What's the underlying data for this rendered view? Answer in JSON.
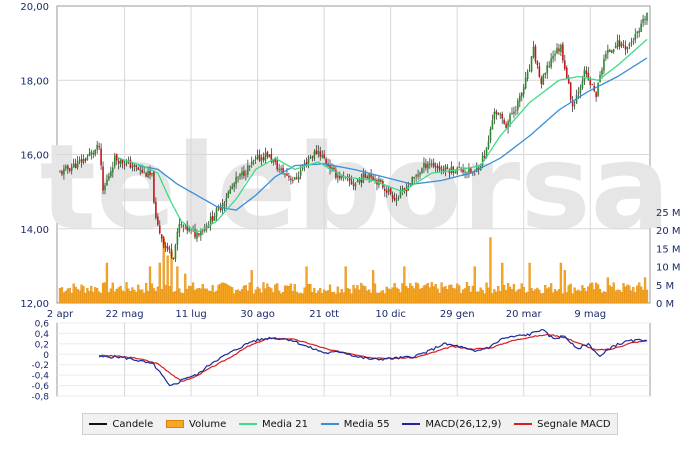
{
  "chart_data": [
    {
      "type": "candlestick",
      "panel": "price",
      "watermark": "teleborsa",
      "y_axis_left": {
        "ylim": [
          12,
          20
        ],
        "ticks": [
          "12,00",
          "14,00",
          "16,00",
          "18,00",
          "20,00"
        ]
      },
      "y_axis_volume": {
        "ylim_millions": [
          0,
          25
        ],
        "ticks": [
          "0 M",
          "5 M",
          "10 M",
          "15 M",
          "20 M",
          "25 M"
        ]
      },
      "x_tick_labels": [
        "2 apr",
        "22 mag",
        "11 lug",
        "30 ago",
        "21 ott",
        "10 dic",
        "29 gen",
        "20 mar",
        "9 mag"
      ],
      "x_range_index": [
        0,
        300
      ],
      "x_tick_index": [
        0,
        33,
        67,
        101,
        135,
        169,
        203,
        237,
        271
      ],
      "close_anchors": [
        {
          "i": 0,
          "y": 15.5
        },
        {
          "i": 12,
          "y": 15.85
        },
        {
          "i": 20,
          "y": 16.2
        },
        {
          "i": 22,
          "y": 15.0
        },
        {
          "i": 28,
          "y": 15.9
        },
        {
          "i": 35,
          "y": 15.75
        },
        {
          "i": 43,
          "y": 15.5
        },
        {
          "i": 47,
          "y": 15.4
        },
        {
          "i": 49,
          "y": 14.2
        },
        {
          "i": 54,
          "y": 13.5
        },
        {
          "i": 58,
          "y": 13.3
        },
        {
          "i": 61,
          "y": 14.1
        },
        {
          "i": 65,
          "y": 14.0
        },
        {
          "i": 69,
          "y": 13.85
        },
        {
          "i": 75,
          "y": 14.1
        },
        {
          "i": 82,
          "y": 14.6
        },
        {
          "i": 90,
          "y": 15.3
        },
        {
          "i": 100,
          "y": 15.85
        },
        {
          "i": 106,
          "y": 16.0
        },
        {
          "i": 112,
          "y": 15.6
        },
        {
          "i": 120,
          "y": 15.3
        },
        {
          "i": 127,
          "y": 15.9
        },
        {
          "i": 132,
          "y": 16.1
        },
        {
          "i": 140,
          "y": 15.5
        },
        {
          "i": 150,
          "y": 15.2
        },
        {
          "i": 158,
          "y": 15.5
        },
        {
          "i": 166,
          "y": 15.1
        },
        {
          "i": 172,
          "y": 14.8
        },
        {
          "i": 180,
          "y": 15.3
        },
        {
          "i": 188,
          "y": 15.8
        },
        {
          "i": 195,
          "y": 15.6
        },
        {
          "i": 205,
          "y": 15.6
        },
        {
          "i": 212,
          "y": 15.5
        },
        {
          "i": 218,
          "y": 16.1
        },
        {
          "i": 222,
          "y": 17.2
        },
        {
          "i": 228,
          "y": 16.8
        },
        {
          "i": 235,
          "y": 17.5
        },
        {
          "i": 240,
          "y": 18.3
        },
        {
          "i": 242,
          "y": 18.8
        },
        {
          "i": 246,
          "y": 17.9
        },
        {
          "i": 252,
          "y": 18.7
        },
        {
          "i": 256,
          "y": 18.9
        },
        {
          "i": 262,
          "y": 17.3
        },
        {
          "i": 268,
          "y": 18.2
        },
        {
          "i": 274,
          "y": 17.6
        },
        {
          "i": 278,
          "y": 18.6
        },
        {
          "i": 284,
          "y": 19.0
        },
        {
          "i": 290,
          "y": 18.9
        },
        {
          "i": 296,
          "y": 19.3
        },
        {
          "i": 300,
          "y": 19.8
        }
      ],
      "ma21_anchors": [
        {
          "i": 30,
          "y": 15.9
        },
        {
          "i": 42,
          "y": 15.7
        },
        {
          "i": 50,
          "y": 15.5
        },
        {
          "i": 56,
          "y": 14.8
        },
        {
          "i": 62,
          "y": 14.2
        },
        {
          "i": 70,
          "y": 13.9
        },
        {
          "i": 80,
          "y": 14.2
        },
        {
          "i": 90,
          "y": 14.8
        },
        {
          "i": 100,
          "y": 15.6
        },
        {
          "i": 110,
          "y": 15.9
        },
        {
          "i": 120,
          "y": 15.6
        },
        {
          "i": 132,
          "y": 15.8
        },
        {
          "i": 145,
          "y": 15.4
        },
        {
          "i": 160,
          "y": 15.3
        },
        {
          "i": 175,
          "y": 15.0
        },
        {
          "i": 190,
          "y": 15.5
        },
        {
          "i": 205,
          "y": 15.6
        },
        {
          "i": 215,
          "y": 15.7
        },
        {
          "i": 225,
          "y": 16.5
        },
        {
          "i": 240,
          "y": 17.4
        },
        {
          "i": 255,
          "y": 18.0
        },
        {
          "i": 265,
          "y": 18.1
        },
        {
          "i": 275,
          "y": 18.0
        },
        {
          "i": 285,
          "y": 18.4
        },
        {
          "i": 300,
          "y": 19.1
        }
      ],
      "ma55_anchors": [
        {
          "i": 40,
          "y": 15.7
        },
        {
          "i": 50,
          "y": 15.6
        },
        {
          "i": 60,
          "y": 15.2
        },
        {
          "i": 70,
          "y": 14.9
        },
        {
          "i": 80,
          "y": 14.6
        },
        {
          "i": 90,
          "y": 14.5
        },
        {
          "i": 100,
          "y": 14.9
        },
        {
          "i": 110,
          "y": 15.4
        },
        {
          "i": 120,
          "y": 15.7
        },
        {
          "i": 135,
          "y": 15.75
        },
        {
          "i": 150,
          "y": 15.6
        },
        {
          "i": 165,
          "y": 15.4
        },
        {
          "i": 180,
          "y": 15.2
        },
        {
          "i": 195,
          "y": 15.3
        },
        {
          "i": 210,
          "y": 15.5
        },
        {
          "i": 225,
          "y": 15.9
        },
        {
          "i": 240,
          "y": 16.5
        },
        {
          "i": 255,
          "y": 17.2
        },
        {
          "i": 270,
          "y": 17.7
        },
        {
          "i": 285,
          "y": 18.1
        },
        {
          "i": 300,
          "y": 18.6
        }
      ],
      "volume_base_millions": 3.5,
      "volume_spikes_millions": [
        {
          "i": 24,
          "v": 11
        },
        {
          "i": 46,
          "v": 10
        },
        {
          "i": 51,
          "v": 11
        },
        {
          "i": 53,
          "v": 18
        },
        {
          "i": 55,
          "v": 13
        },
        {
          "i": 57,
          "v": 14
        },
        {
          "i": 60,
          "v": 10
        },
        {
          "i": 64,
          "v": 8
        },
        {
          "i": 98,
          "v": 9
        },
        {
          "i": 126,
          "v": 10
        },
        {
          "i": 146,
          "v": 10
        },
        {
          "i": 160,
          "v": 9
        },
        {
          "i": 176,
          "v": 10
        },
        {
          "i": 212,
          "v": 10
        },
        {
          "i": 220,
          "v": 18
        },
        {
          "i": 226,
          "v": 11
        },
        {
          "i": 240,
          "v": 11
        },
        {
          "i": 256,
          "v": 11
        },
        {
          "i": 258,
          "v": 9
        },
        {
          "i": 280,
          "v": 7
        },
        {
          "i": 299,
          "v": 7
        }
      ]
    },
    {
      "type": "line",
      "panel": "macd",
      "ylim": [
        -0.8,
        0.6
      ],
      "y_ticks": [
        "0,6",
        "0,4",
        "0,2",
        "0",
        "-0,2",
        "-0,4",
        "-0,6",
        "-0,8"
      ],
      "x_range_index": [
        0,
        300
      ],
      "macd_anchors": [
        {
          "i": 20,
          "y": -0.05
        },
        {
          "i": 30,
          "y": -0.05
        },
        {
          "i": 38,
          "y": -0.1
        },
        {
          "i": 48,
          "y": -0.2
        },
        {
          "i": 53,
          "y": -0.45
        },
        {
          "i": 56,
          "y": -0.62
        },
        {
          "i": 60,
          "y": -0.55
        },
        {
          "i": 64,
          "y": -0.45
        },
        {
          "i": 70,
          "y": -0.4
        },
        {
          "i": 78,
          "y": -0.15
        },
        {
          "i": 88,
          "y": 0.05
        },
        {
          "i": 98,
          "y": 0.25
        },
        {
          "i": 108,
          "y": 0.32
        },
        {
          "i": 118,
          "y": 0.28
        },
        {
          "i": 126,
          "y": 0.15
        },
        {
          "i": 136,
          "y": 0.02
        },
        {
          "i": 144,
          "y": 0.05
        },
        {
          "i": 152,
          "y": -0.05
        },
        {
          "i": 160,
          "y": -0.1
        },
        {
          "i": 170,
          "y": -0.08
        },
        {
          "i": 180,
          "y": -0.05
        },
        {
          "i": 188,
          "y": 0.05
        },
        {
          "i": 196,
          "y": 0.2
        },
        {
          "i": 204,
          "y": 0.15
        },
        {
          "i": 212,
          "y": 0.05
        },
        {
          "i": 220,
          "y": 0.15
        },
        {
          "i": 226,
          "y": 0.3
        },
        {
          "i": 234,
          "y": 0.35
        },
        {
          "i": 240,
          "y": 0.38
        },
        {
          "i": 246,
          "y": 0.48
        },
        {
          "i": 252,
          "y": 0.3
        },
        {
          "i": 258,
          "y": 0.35
        },
        {
          "i": 264,
          "y": 0.1
        },
        {
          "i": 270,
          "y": 0.2
        },
        {
          "i": 276,
          "y": -0.05
        },
        {
          "i": 282,
          "y": 0.15
        },
        {
          "i": 290,
          "y": 0.25
        },
        {
          "i": 300,
          "y": 0.28
        }
      ],
      "signal_anchors": [
        {
          "i": 20,
          "y": -0.02
        },
        {
          "i": 30,
          "y": -0.04
        },
        {
          "i": 40,
          "y": -0.08
        },
        {
          "i": 50,
          "y": -0.18
        },
        {
          "i": 56,
          "y": -0.35
        },
        {
          "i": 62,
          "y": -0.52
        },
        {
          "i": 68,
          "y": -0.45
        },
        {
          "i": 76,
          "y": -0.28
        },
        {
          "i": 86,
          "y": -0.08
        },
        {
          "i": 96,
          "y": 0.15
        },
        {
          "i": 106,
          "y": 0.3
        },
        {
          "i": 118,
          "y": 0.3
        },
        {
          "i": 128,
          "y": 0.2
        },
        {
          "i": 138,
          "y": 0.08
        },
        {
          "i": 148,
          "y": 0.02
        },
        {
          "i": 158,
          "y": -0.06
        },
        {
          "i": 170,
          "y": -0.08
        },
        {
          "i": 182,
          "y": -0.06
        },
        {
          "i": 192,
          "y": 0.05
        },
        {
          "i": 200,
          "y": 0.15
        },
        {
          "i": 210,
          "y": 0.1
        },
        {
          "i": 220,
          "y": 0.12
        },
        {
          "i": 230,
          "y": 0.25
        },
        {
          "i": 240,
          "y": 0.33
        },
        {
          "i": 250,
          "y": 0.38
        },
        {
          "i": 258,
          "y": 0.32
        },
        {
          "i": 266,
          "y": 0.2
        },
        {
          "i": 274,
          "y": 0.08
        },
        {
          "i": 282,
          "y": 0.1
        },
        {
          "i": 292,
          "y": 0.22
        },
        {
          "i": 300,
          "y": 0.26
        }
      ]
    }
  ],
  "legend": [
    {
      "label": "Candele",
      "kind": "line",
      "color": "#111111"
    },
    {
      "label": "Volume",
      "kind": "box",
      "color": "#f5a623"
    },
    {
      "label": "Media 21",
      "kind": "line",
      "color": "#3ddc84"
    },
    {
      "label": "Media 55",
      "kind": "line",
      "color": "#3a8fd8"
    },
    {
      "label": "MACD(26,12,9)",
      "kind": "line",
      "color": "#1a2a9a"
    },
    {
      "label": "Segnale MACD",
      "kind": "line",
      "color": "#d42020"
    }
  ],
  "colors": {
    "candle_up": "#2a8a2a",
    "candle_down": "#c01818",
    "wick": "#222222",
    "volume": "#f5a623",
    "volume_edge": "#d9800d",
    "ma21": "#3ddc84",
    "ma55": "#3a8fd8",
    "macd": "#1a2a9a",
    "signal": "#d42020",
    "axis_text": "#1a2a6a",
    "grid": "#d8d8d8",
    "watermark": "#e6e6e6"
  }
}
